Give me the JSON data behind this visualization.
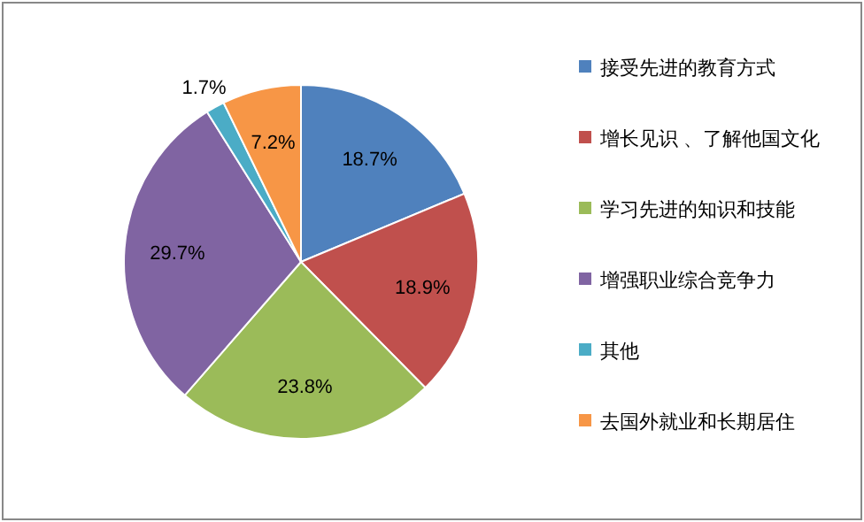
{
  "chart_data": {
    "type": "pie",
    "categories": [
      "接受先进的教育方式",
      "增长见识 、了解他国文化",
      "学习先进的知识和技能",
      "增强职业综合竞争力",
      "其他",
      "去国外就业和长期居住"
    ],
    "values": [
      18.7,
      18.9,
      23.8,
      29.7,
      1.7,
      7.2
    ],
    "colors": [
      "#4f81bd",
      "#c0504d",
      "#9bbb59",
      "#8064a2",
      "#4bacc6",
      "#f79646"
    ],
    "value_labels": [
      "18.7%",
      "18.9%",
      "23.8%",
      "29.7%",
      "1.7%",
      "7.2%"
    ],
    "legend": "right"
  }
}
